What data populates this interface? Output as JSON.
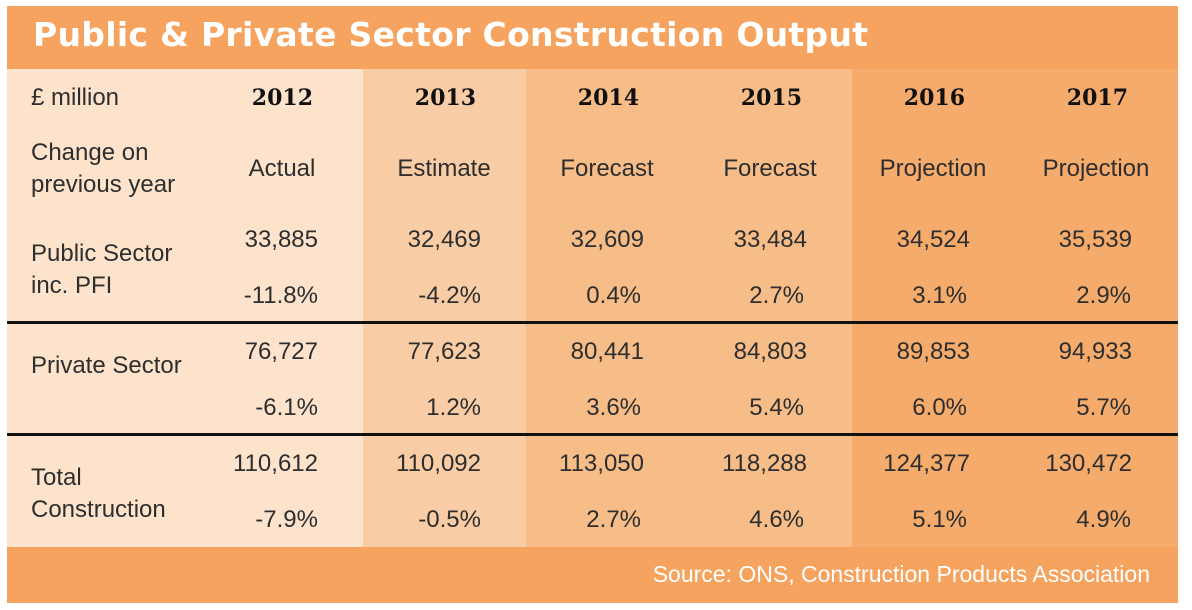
{
  "chart_data": {
    "type": "table",
    "title": "Public & Private Sector Construction Output",
    "unit_label": "£ million",
    "years": [
      "2012",
      "2013",
      "2014",
      "2015",
      "2016",
      "2017"
    ],
    "status_label": "Change on previous year",
    "status": [
      "Actual",
      "Estimate",
      "Forecast",
      "Forecast",
      "Projection",
      "Projection"
    ],
    "rows": [
      {
        "name": "Public Sector inc. PFI",
        "values": [
          "33,885",
          "32,469",
          "32,609",
          "33,484",
          "34,524",
          "35,539"
        ],
        "changes": [
          "-11.8%",
          "-4.2%",
          "0.4%",
          "2.7%",
          "3.1%",
          "2.9%"
        ]
      },
      {
        "name": "Private Sector",
        "values": [
          "76,727",
          "77,623",
          "80,441",
          "84,803",
          "89,853",
          "94,933"
        ],
        "changes": [
          "-6.1%",
          "1.2%",
          "3.6%",
          "5.4%",
          "6.0%",
          "5.7%"
        ]
      },
      {
        "name": "Total Construction",
        "values": [
          "110,612",
          "110,092",
          "113,050",
          "118,288",
          "124,377",
          "130,472"
        ],
        "changes": [
          "-7.9%",
          "-0.5%",
          "2.7%",
          "4.6%",
          "5.1%",
          "4.9%"
        ]
      }
    ],
    "source": "Source: ONS, Construction Products Association"
  },
  "colors": {
    "frame": "#f5a35f",
    "column_shades": [
      "#fde3cc",
      "#fde3cc",
      "#f8cca5",
      "#f6bd88",
      "#f6bd88",
      "#f4ab6c",
      "#f4ab6c"
    ],
    "text": "#2e2e2e",
    "title_text": "#ffffff"
  }
}
